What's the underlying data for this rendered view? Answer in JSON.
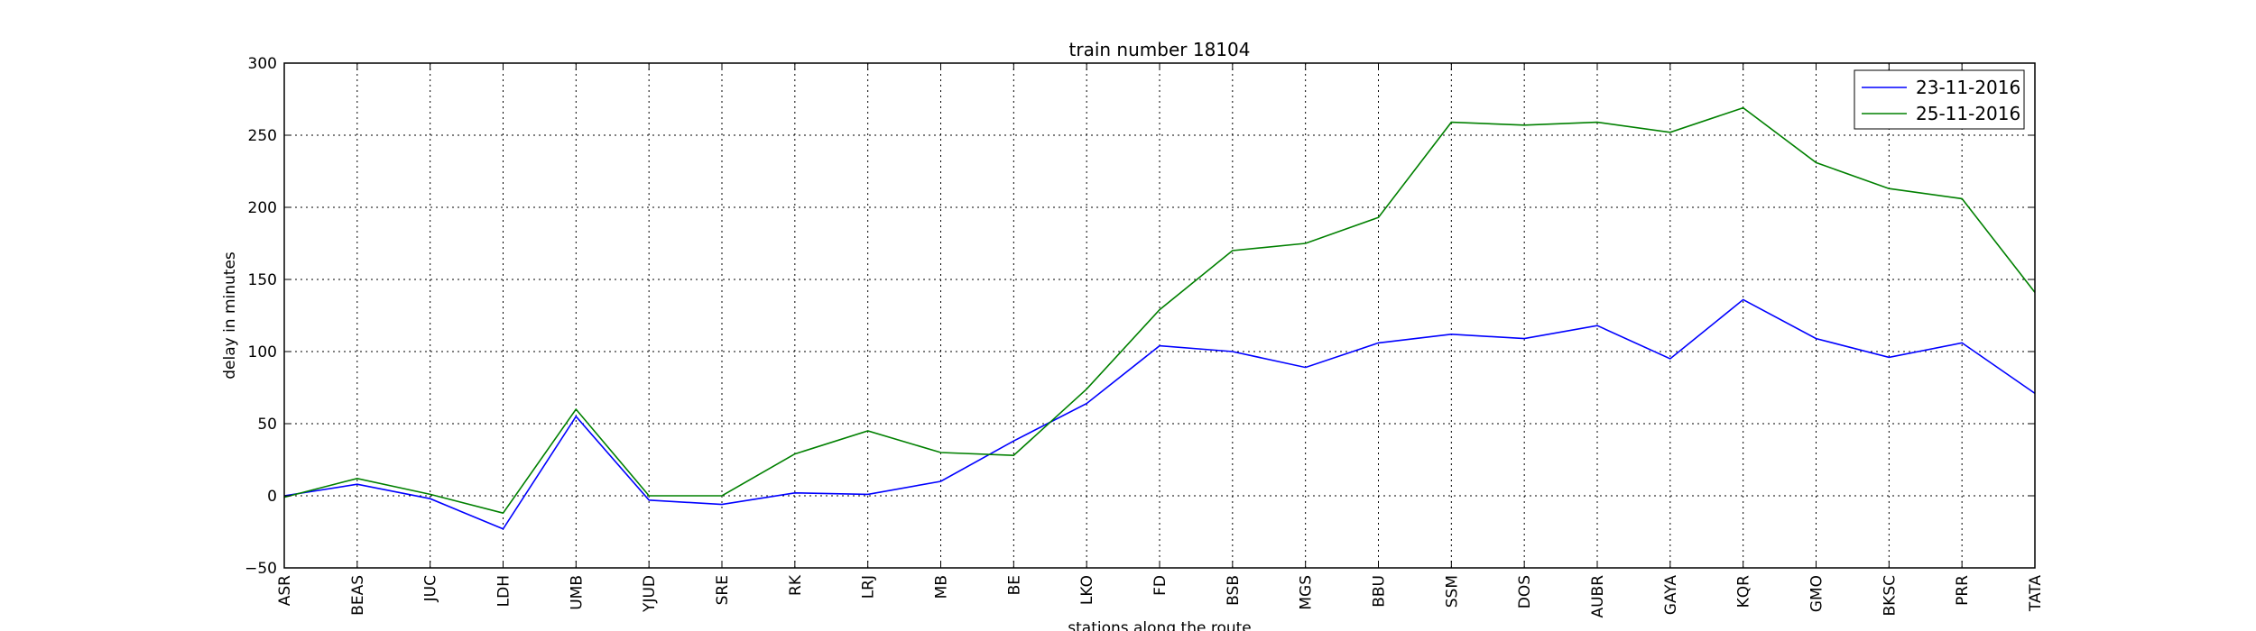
{
  "chart_data": {
    "type": "line",
    "title": "train number 18104",
    "xlabel": "stations along the route",
    "ylabel": "delay in minutes",
    "categories": [
      "ASR",
      "BEAS",
      "JUC",
      "LDH",
      "UMB",
      "YJUD",
      "SRE",
      "RK",
      "LRJ",
      "MB",
      "BE",
      "LKO",
      "FD",
      "BSB",
      "MGS",
      "BBU",
      "SSM",
      "DOS",
      "AUBR",
      "GAYA",
      "KQR",
      "GMO",
      "BKSC",
      "PRR",
      "TATA"
    ],
    "ylim": [
      -50,
      300
    ],
    "yticks": [
      -50,
      0,
      50,
      100,
      150,
      200,
      250,
      300
    ],
    "grid": true,
    "legend_position": "top-right",
    "series": [
      {
        "name": "23-11-2016",
        "color": "#0000ff",
        "values": [
          0,
          8,
          -2,
          -23,
          55,
          -3,
          -6,
          2,
          1,
          10,
          38,
          64,
          104,
          100,
          89,
          106,
          112,
          109,
          118,
          95,
          136,
          109,
          96,
          106,
          71
        ]
      },
      {
        "name": "25-11-2016",
        "color": "#008000",
        "values": [
          -1,
          12,
          1,
          -12,
          60,
          0,
          0,
          29,
          45,
          30,
          28,
          74,
          129,
          170,
          175,
          193,
          259,
          257,
          259,
          252,
          269,
          231,
          213,
          206,
          141
        ]
      }
    ]
  }
}
